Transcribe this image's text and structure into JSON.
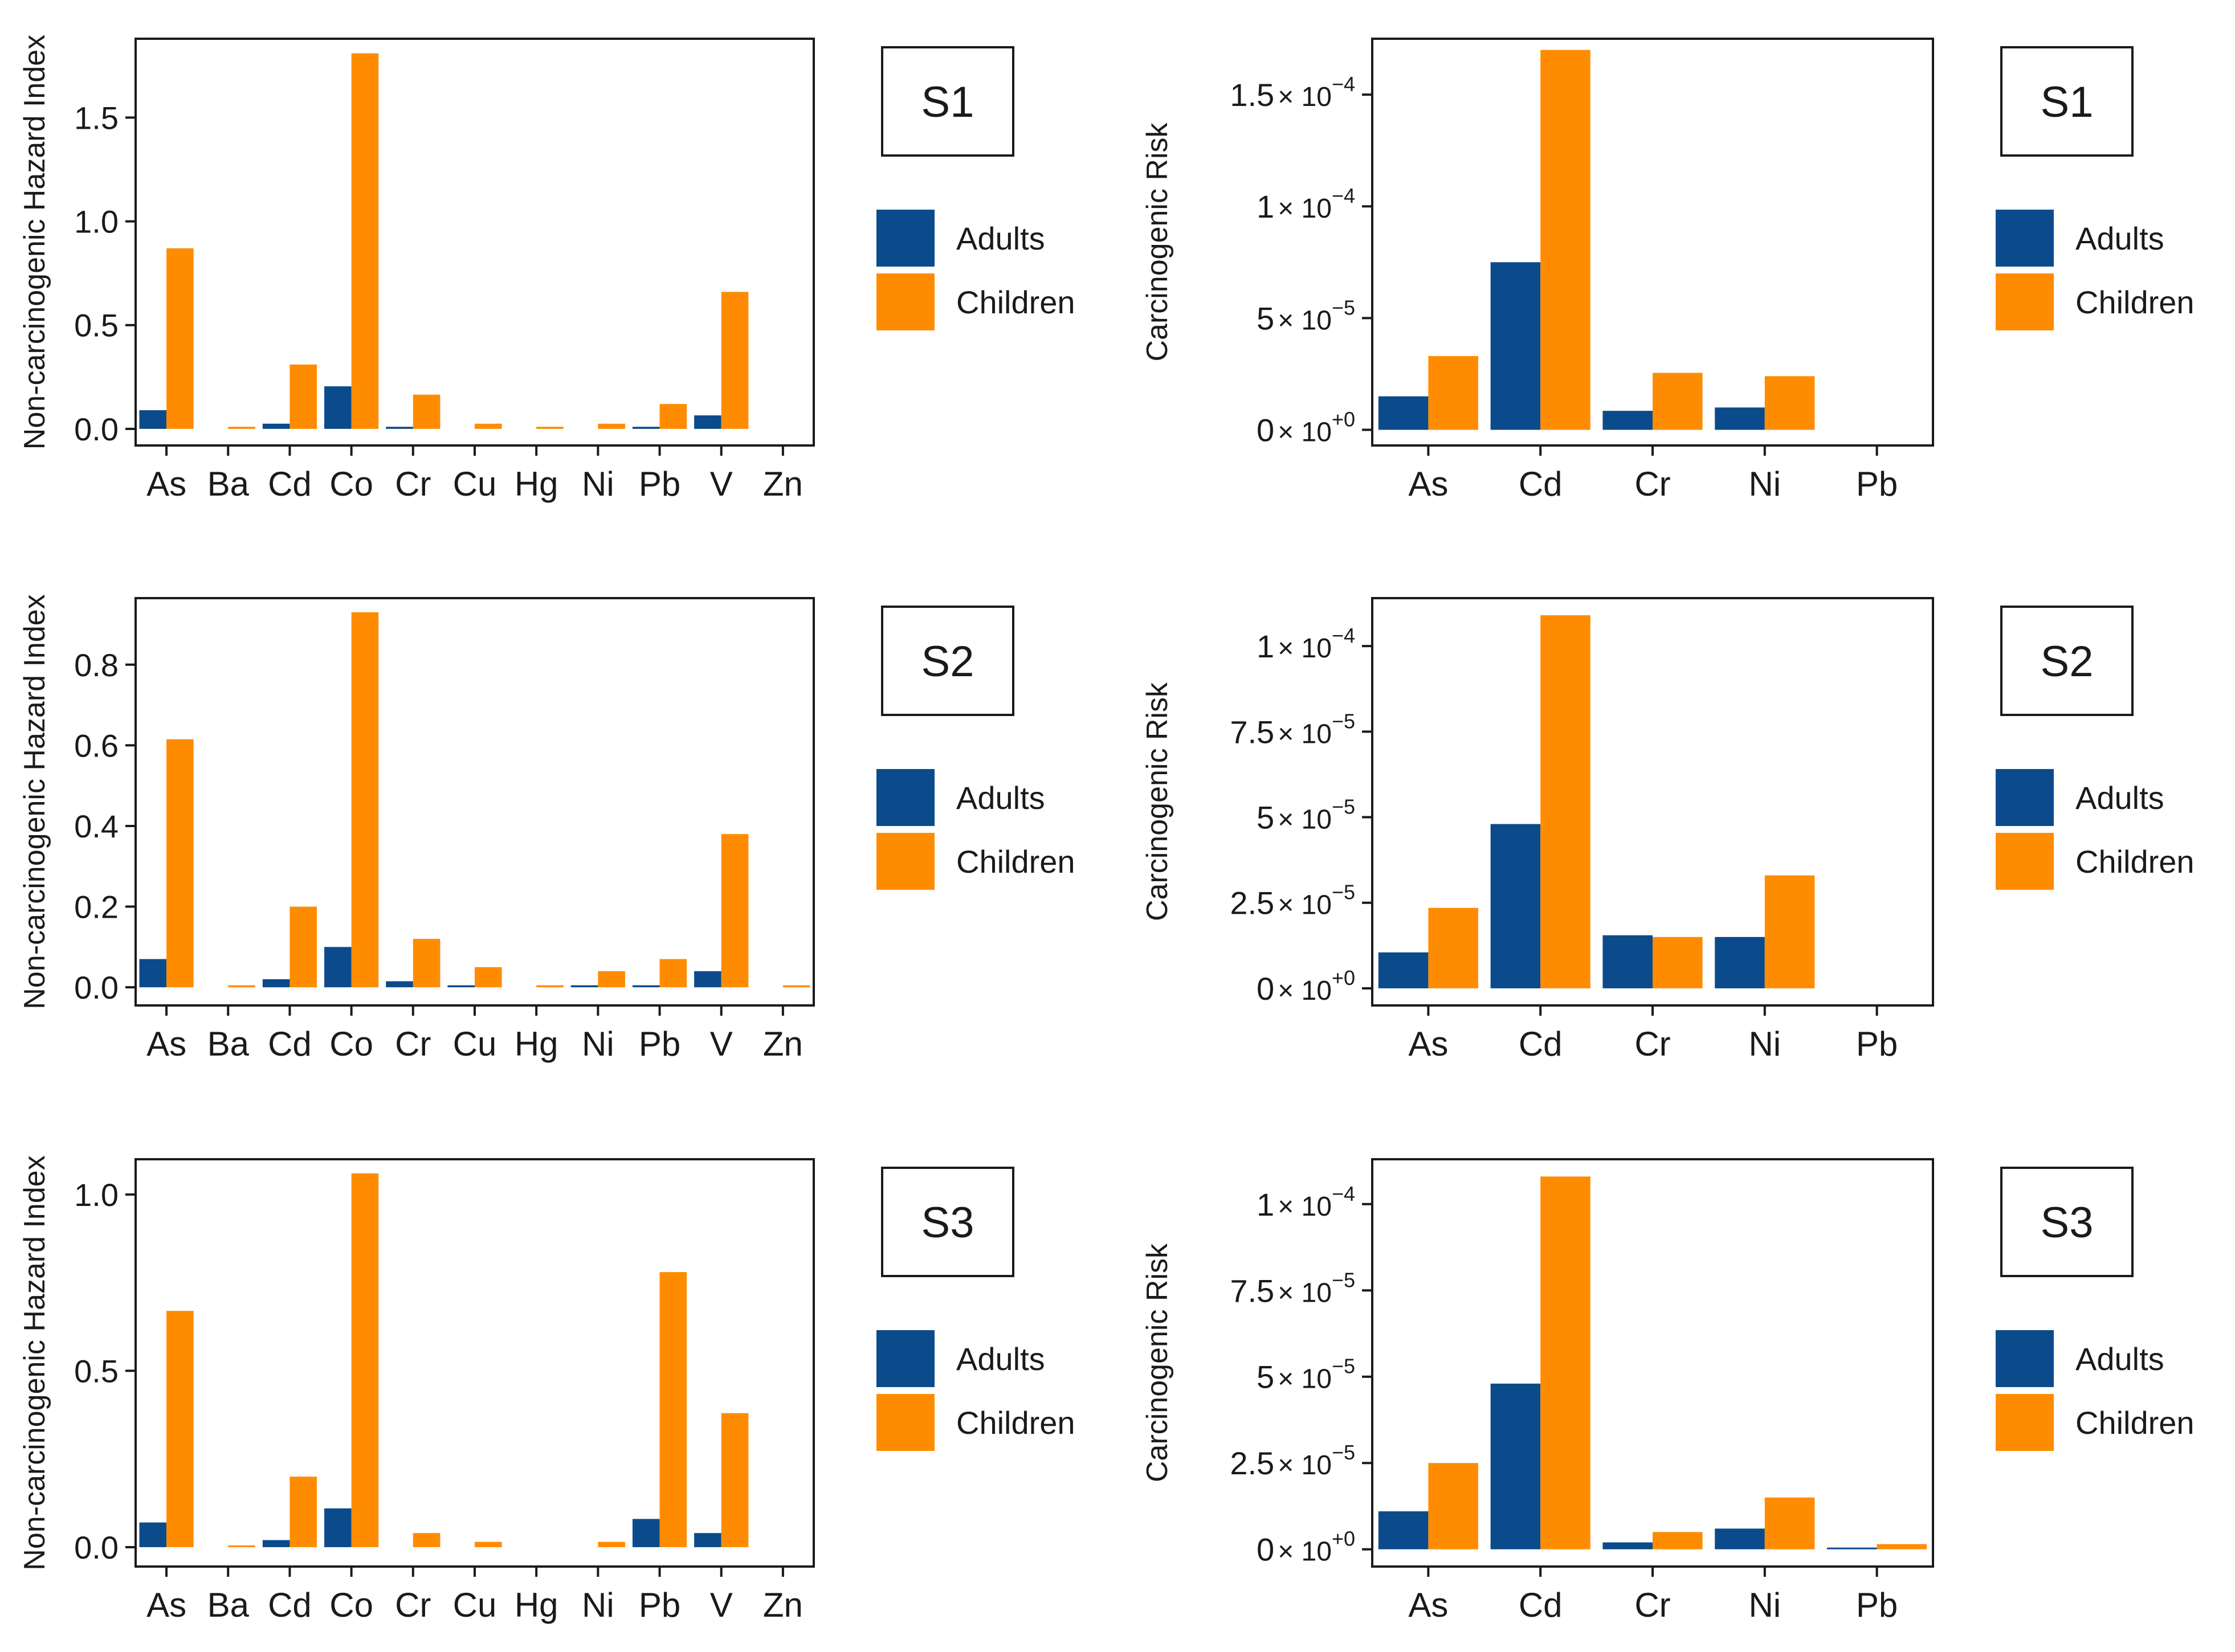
{
  "colors": {
    "adults": "#0b4b8c",
    "children": "#ff8c00",
    "axis": "#1a1a1a"
  },
  "chart_data": [
    {
      "type": "bar",
      "panel": "hazard",
      "site": "S1",
      "ylabel": "Non-carcinogenic Hazard Index",
      "categories": [
        "As",
        "Ba",
        "Cd",
        "Co",
        "Cr",
        "Cu",
        "Hg",
        "Ni",
        "Pb",
        "V",
        "Zn"
      ],
      "ylim": [
        -0.08,
        1.88
      ],
      "ticks": [
        {
          "value": 0,
          "label": "0.0"
        },
        {
          "value": 0.5,
          "label": "0.5"
        },
        {
          "value": 1.0,
          "label": "1.0"
        },
        {
          "value": 1.5,
          "label": "1.5"
        }
      ],
      "series": [
        {
          "name": "Adults",
          "values": [
            0.09,
            0.0,
            0.025,
            0.205,
            0.01,
            0.0,
            0.0,
            0.0,
            0.01,
            0.065,
            0.0
          ]
        },
        {
          "name": "Children",
          "values": [
            0.87,
            0.01,
            0.31,
            1.81,
            0.165,
            0.025,
            0.01,
            0.025,
            0.12,
            0.66,
            0.0
          ]
        }
      ]
    },
    {
      "type": "bar",
      "panel": "risk",
      "site": "S1",
      "ylabel": "Carcinogenic Risk",
      "categories": [
        "As",
        "Cd",
        "Cr",
        "Ni",
        "Pb"
      ],
      "ylim": [
        -7e-06,
        0.000175
      ],
      "ticks": [
        {
          "value": 0,
          "mant": "0",
          "exp": "+0"
        },
        {
          "value": 5e-05,
          "mant": "5",
          "exp": "−5"
        },
        {
          "value": 0.0001,
          "mant": "1",
          "exp": "−4"
        },
        {
          "value": 0.00015,
          "mant": "1.5",
          "exp": "−4"
        }
      ],
      "series": [
        {
          "name": "Adults",
          "values": [
            1.5e-05,
            7.5e-05,
            8.5e-06,
            1e-05,
            0.0
          ]
        },
        {
          "name": "Children",
          "values": [
            3.3e-05,
            0.00017,
            2.55e-05,
            2.4e-05,
            0.0
          ]
        }
      ]
    },
    {
      "type": "bar",
      "panel": "hazard",
      "site": "S2",
      "ylabel": "Non-carcinogenic Hazard Index",
      "categories": [
        "As",
        "Ba",
        "Cd",
        "Co",
        "Cr",
        "Cu",
        "Hg",
        "Ni",
        "Pb",
        "V",
        "Zn"
      ],
      "ylim": [
        -0.045,
        0.965
      ],
      "ticks": [
        {
          "value": 0,
          "label": "0.0"
        },
        {
          "value": 0.2,
          "label": "0.2"
        },
        {
          "value": 0.4,
          "label": "0.4"
        },
        {
          "value": 0.6,
          "label": "0.6"
        },
        {
          "value": 0.8,
          "label": "0.8"
        }
      ],
      "series": [
        {
          "name": "Adults",
          "values": [
            0.07,
            0.0,
            0.02,
            0.1,
            0.015,
            0.005,
            0.0,
            0.005,
            0.005,
            0.04,
            0.0
          ]
        },
        {
          "name": "Children",
          "values": [
            0.615,
            0.005,
            0.2,
            0.93,
            0.12,
            0.05,
            0.005,
            0.04,
            0.07,
            0.38,
            0.005
          ]
        }
      ]
    },
    {
      "type": "bar",
      "panel": "risk",
      "site": "S2",
      "ylabel": "Carcinogenic Risk",
      "categories": [
        "As",
        "Cd",
        "Cr",
        "Ni",
        "Pb"
      ],
      "ylim": [
        -5e-06,
        0.000114
      ],
      "ticks": [
        {
          "value": 0,
          "mant": "0",
          "exp": "+0"
        },
        {
          "value": 2.5e-05,
          "mant": "2.5",
          "exp": "−5"
        },
        {
          "value": 5e-05,
          "mant": "5",
          "exp": "−5"
        },
        {
          "value": 7.5e-05,
          "mant": "7.5",
          "exp": "−5"
        },
        {
          "value": 0.0001,
          "mant": "1",
          "exp": "−4"
        }
      ],
      "series": [
        {
          "name": "Adults",
          "values": [
            1.05e-05,
            4.8e-05,
            1.55e-05,
            1.5e-05,
            0.0
          ]
        },
        {
          "name": "Children",
          "values": [
            2.35e-05,
            0.000109,
            1.5e-05,
            3.3e-05,
            0.0
          ]
        }
      ]
    },
    {
      "type": "bar",
      "panel": "hazard",
      "site": "S3",
      "ylabel": "Non-carcinogenic Hazard Index",
      "categories": [
        "As",
        "Ba",
        "Cd",
        "Co",
        "Cr",
        "Cu",
        "Hg",
        "Ni",
        "Pb",
        "V",
        "Zn"
      ],
      "ylim": [
        -0.055,
        1.1
      ],
      "ticks": [
        {
          "value": 0,
          "label": "0.0"
        },
        {
          "value": 0.5,
          "label": "0.5"
        },
        {
          "value": 1.0,
          "label": "1.0"
        }
      ],
      "series": [
        {
          "name": "Adults",
          "values": [
            0.07,
            0.0,
            0.02,
            0.11,
            0.0,
            0.0,
            0.0,
            0.0,
            0.08,
            0.04,
            0.0
          ]
        },
        {
          "name": "Children",
          "values": [
            0.67,
            0.005,
            0.2,
            1.06,
            0.04,
            0.015,
            0.0,
            0.015,
            0.78,
            0.38,
            0.0
          ]
        }
      ]
    },
    {
      "type": "bar",
      "panel": "risk",
      "site": "S3",
      "ylabel": "Carcinogenic Risk",
      "categories": [
        "As",
        "Cd",
        "Cr",
        "Ni",
        "Pb"
      ],
      "ylim": [
        -5e-06,
        0.000113
      ],
      "ticks": [
        {
          "value": 0,
          "mant": "0",
          "exp": "+0"
        },
        {
          "value": 2.5e-05,
          "mant": "2.5",
          "exp": "−5"
        },
        {
          "value": 5e-05,
          "mant": "5",
          "exp": "−5"
        },
        {
          "value": 7.5e-05,
          "mant": "7.5",
          "exp": "−5"
        },
        {
          "value": 0.0001,
          "mant": "1",
          "exp": "−4"
        }
      ],
      "series": [
        {
          "name": "Adults",
          "values": [
            1.1e-05,
            4.8e-05,
            2e-06,
            6e-06,
            5e-07
          ]
        },
        {
          "name": "Children",
          "values": [
            2.5e-05,
            0.000108,
            5e-06,
            1.5e-05,
            1.5e-06
          ]
        }
      ]
    }
  ],
  "legend": {
    "adults_label": "Adults",
    "children_label": "Children"
  }
}
